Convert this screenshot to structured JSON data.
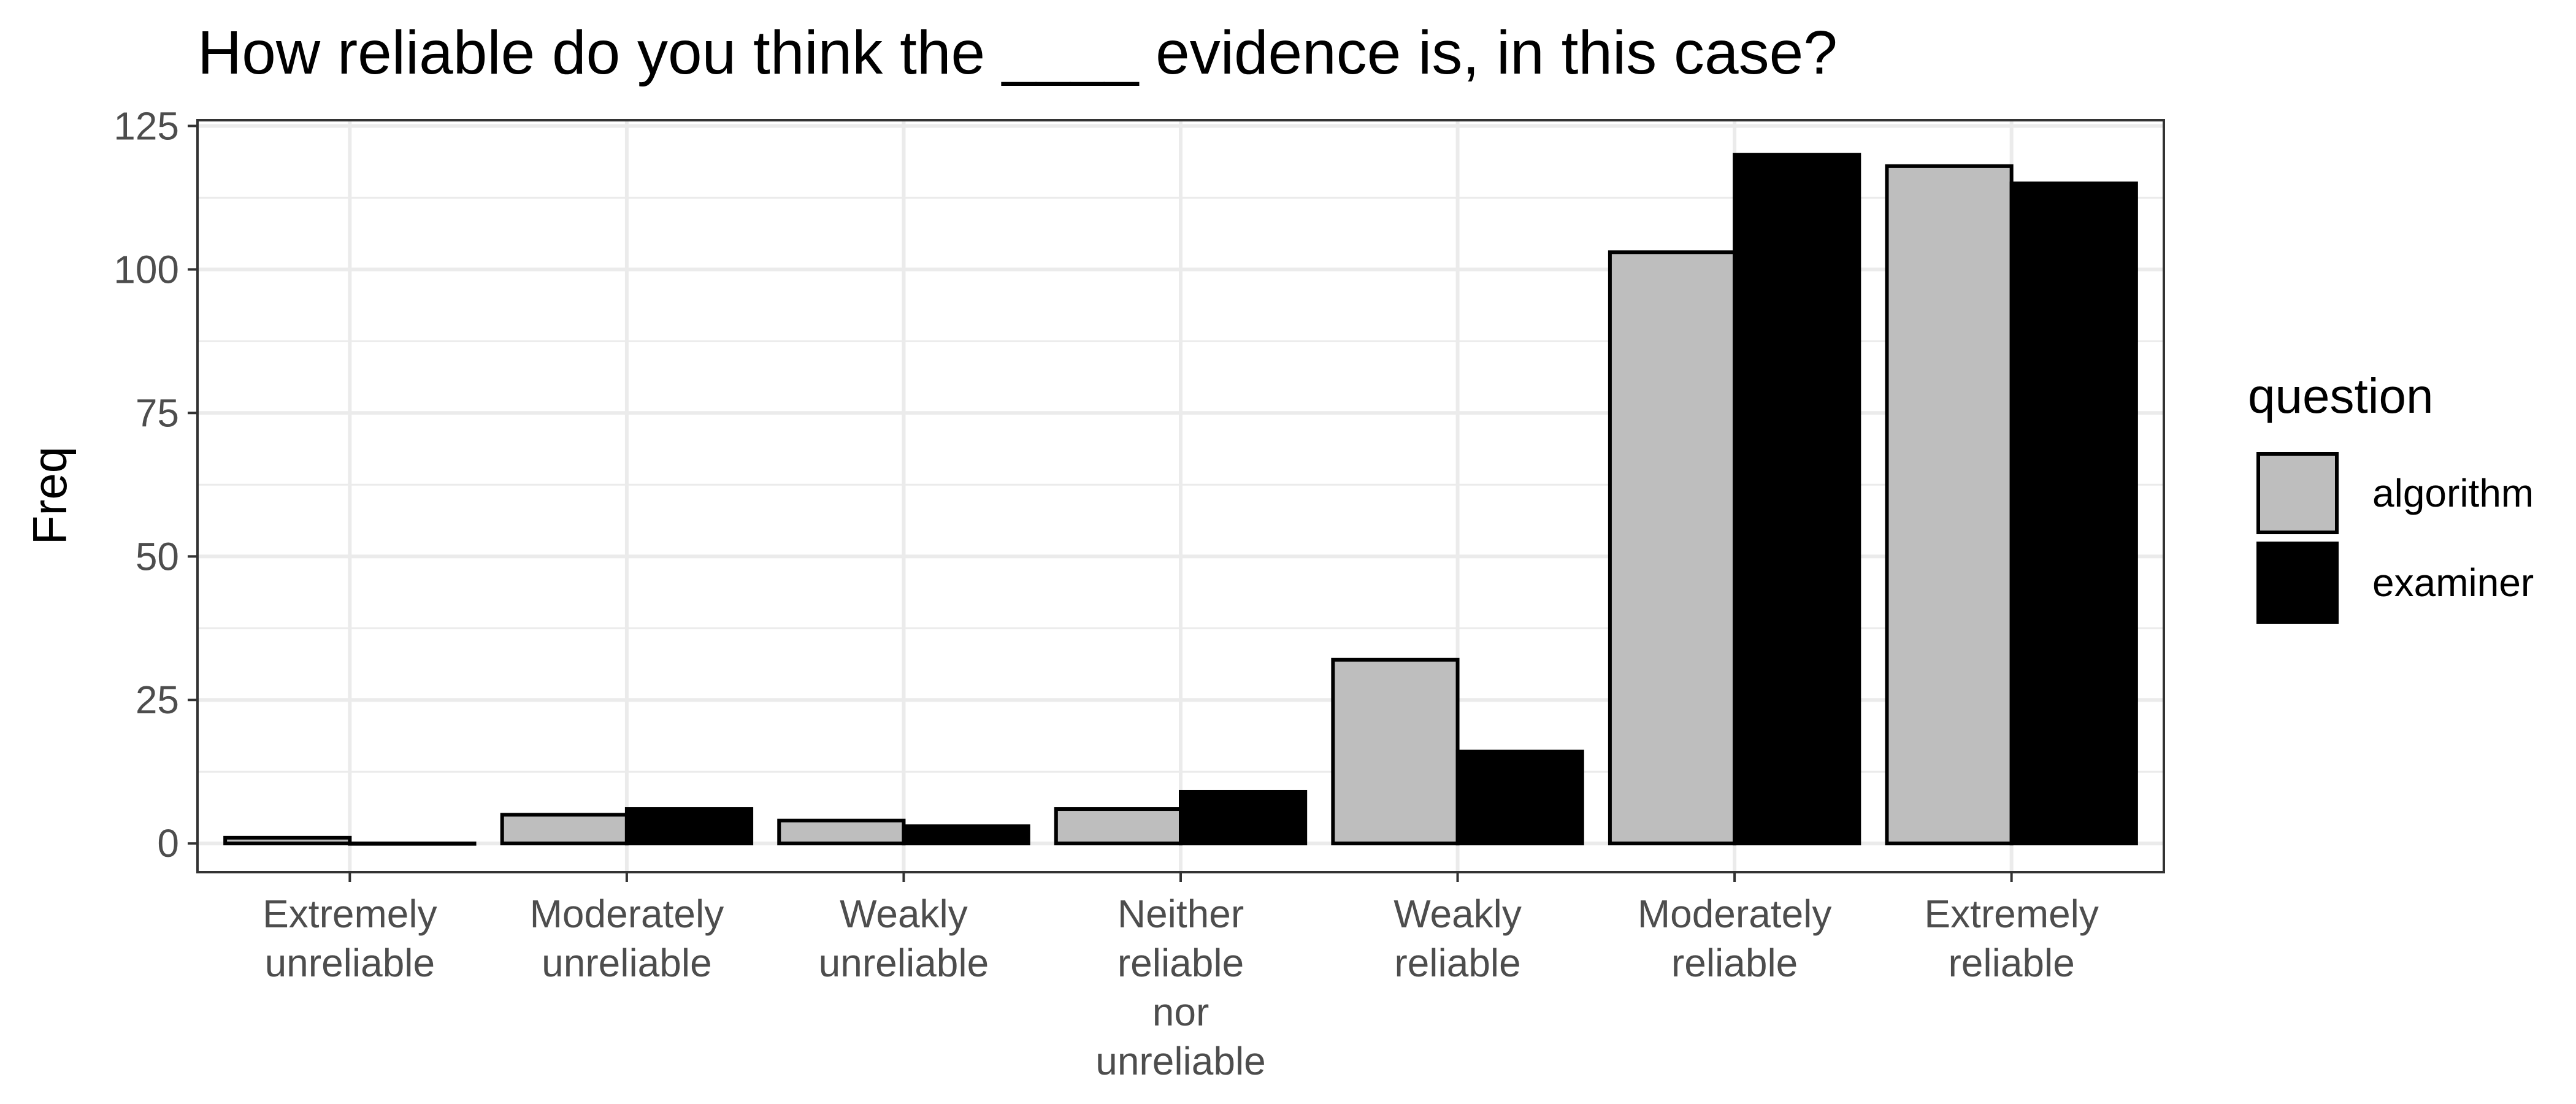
{
  "chart_data": {
    "type": "bar",
    "title": "How reliable do you think the ____ evidence is, in this case?",
    "xlabel": "",
    "ylabel": "Freq",
    "ylim": [
      -5,
      126
    ],
    "yticks": [
      0,
      25,
      50,
      75,
      100,
      125
    ],
    "grid": true,
    "legend_position": "right",
    "legend_title": "question",
    "categories": [
      [
        "Extremely",
        "unreliable"
      ],
      [
        "Moderately",
        "unreliable"
      ],
      [
        "Weakly",
        "unreliable"
      ],
      [
        "Neither",
        "reliable",
        "nor",
        "unreliable"
      ],
      [
        "Weakly",
        "reliable"
      ],
      [
        "Moderately",
        "reliable"
      ],
      [
        "Extremely",
        "reliable"
      ]
    ],
    "series": [
      {
        "name": "algorithm",
        "color": "#bebebe",
        "values": [
          1,
          5,
          4,
          6,
          32,
          103,
          118
        ]
      },
      {
        "name": "examiner",
        "color": "#000000",
        "values": [
          0,
          6,
          3,
          9,
          16,
          120,
          115
        ]
      }
    ]
  }
}
